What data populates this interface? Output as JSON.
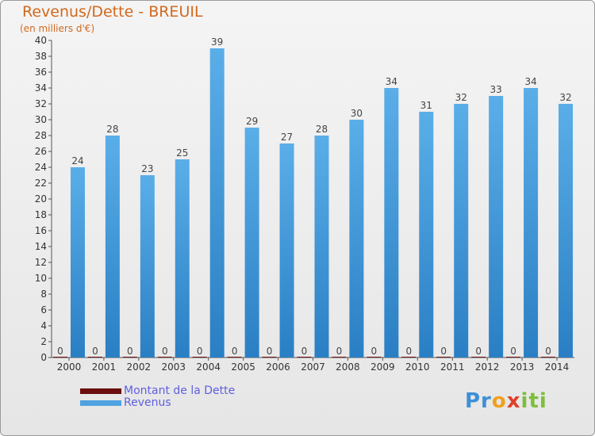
{
  "title": "Revenus/Dette - BREUIL",
  "subtitle": "(en milliers d'€)",
  "colors": {
    "revenus_light": "#5aaee8",
    "revenus_dark": "#2a7fc4",
    "dette": "#6b0d0d",
    "title": "#d2691e",
    "legend_text": "#5f5fe0"
  },
  "legend": [
    {
      "label": "Montant de la Dette",
      "color": "#6b0d0d"
    },
    {
      "label": "Revenus",
      "color": "#4fa3e0"
    }
  ],
  "logo": {
    "text": "Proxiti"
  },
  "chart_data": {
    "type": "bar",
    "categories": [
      "2000",
      "2001",
      "2002",
      "2003",
      "2004",
      "2005",
      "2006",
      "2007",
      "2008",
      "2009",
      "2010",
      "2011",
      "2012",
      "2013",
      "2014"
    ],
    "series": [
      {
        "name": "Montant de la Dette",
        "values": [
          0,
          0,
          0,
          0,
          0,
          0,
          0,
          0,
          0,
          0,
          0,
          0,
          0,
          0,
          0
        ]
      },
      {
        "name": "Revenus",
        "values": [
          24,
          28,
          23,
          25,
          39,
          29,
          27,
          28,
          30,
          34,
          31,
          32,
          33,
          34,
          32
        ]
      }
    ],
    "ylim": [
      0,
      40
    ],
    "yticks": [
      0,
      2,
      4,
      6,
      8,
      10,
      12,
      14,
      16,
      18,
      20,
      22,
      24,
      26,
      28,
      30,
      32,
      34,
      36,
      38,
      40
    ],
    "grid": false,
    "legend_position": "bottom-left"
  }
}
